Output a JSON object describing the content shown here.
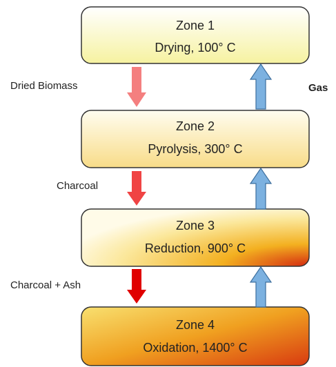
{
  "zones": [
    {
      "title": "Zone 1",
      "subtitle": "Drying, 100° C"
    },
    {
      "title": "Zone 2",
      "subtitle": "Pyrolysis, 300° C"
    },
    {
      "title": "Zone 3",
      "subtitle": "Reduction, 900° C"
    },
    {
      "title": "Zone 4",
      "subtitle": "Oxidation, 1400° C"
    }
  ],
  "flows": [
    "Dried Biomass",
    "Charcoal",
    "Charcoal + Ash"
  ],
  "gas": "Gas"
}
